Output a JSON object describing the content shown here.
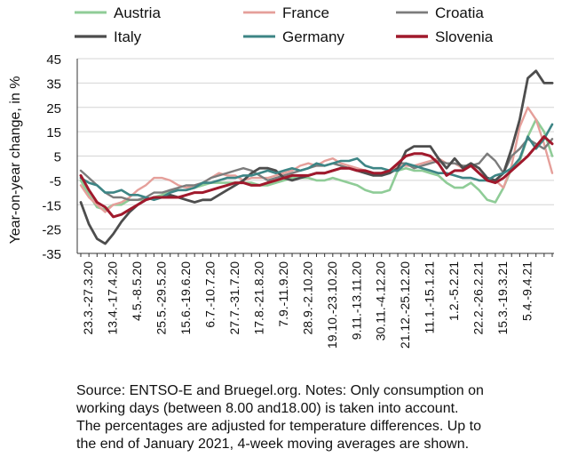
{
  "chart_data": {
    "type": "line",
    "ylabel": "Year-on-year change, in %",
    "xlabel": "",
    "ylim": [
      -35,
      45
    ],
    "yticks": [
      45,
      35,
      25,
      15,
      5,
      -5,
      -15,
      -25,
      -35
    ],
    "grid": true,
    "legend_position": "top",
    "x_tick_labels": [
      "23.3.-27.3.20",
      "13.4.-17.4.20",
      "4.5.-8.5.20",
      "25.5.-29.5.20",
      "15.6.-19.6.20",
      "6.7.-10.7.20",
      "27.7.-31.7.20",
      "17.8.-21.8.20",
      "7.9.-11.9.20",
      "28.9.-2.10.20",
      "19.10.-23.10.20",
      "9.11.-13.11.20",
      "30.11.-4.12.20",
      "21.12.-25.12.20",
      "11.1.-15.1.21",
      "1.2.-5.2.21",
      "22.2.-26.2.21",
      "15.3.-19.3.21",
      "5.4.-9.4.21"
    ],
    "x_tick_every": 3,
    "series": [
      {
        "name": "Austria",
        "color": "#8fcc97",
        "width": 2.6,
        "values": [
          -5,
          -11,
          -16,
          -17,
          -15,
          -15,
          -13,
          -13,
          -13,
          -12,
          -11,
          -9,
          -9,
          -9,
          -8,
          -7,
          -6,
          -6,
          -6,
          -6,
          -6,
          -6,
          -7,
          -7,
          -6,
          -5,
          -4,
          -4,
          -4,
          -5,
          -5,
          -4,
          -5,
          -6,
          -7,
          -9,
          -10,
          -10,
          -9,
          -1,
          0,
          -1,
          -1,
          -2,
          -3,
          -6,
          -8,
          -8,
          -6,
          -9,
          -13,
          -14,
          -8,
          0,
          3,
          13,
          20,
          15,
          5
        ]
      },
      {
        "name": "France",
        "color": "#e59f9a",
        "width": 2.4,
        "values": [
          -7,
          -12,
          -15,
          -18,
          -15,
          -14,
          -12,
          -9,
          -7,
          -4,
          -4,
          -5,
          -7,
          -8,
          -7,
          -6,
          -4,
          -2,
          -3,
          -3,
          -5,
          -4,
          -4,
          -4,
          -3,
          -2,
          -1,
          1,
          2,
          1,
          3,
          4,
          2,
          1,
          0,
          -1,
          -2,
          -2,
          -1,
          1,
          1,
          1,
          2,
          3,
          4,
          2,
          2,
          0,
          2,
          -2,
          -5,
          -5,
          -8,
          1,
          17,
          25,
          20,
          10,
          -2
        ]
      },
      {
        "name": "Croatia",
        "color": "#7c7c7c",
        "width": 2.4,
        "values": [
          -1,
          -4,
          -7,
          -10,
          -12,
          -12,
          -13,
          -13,
          -12,
          -10,
          -10,
          -9,
          -8,
          -7,
          -7,
          -6,
          -4,
          -3,
          -2,
          -1,
          0,
          -1,
          -3,
          -5,
          -4,
          -3,
          -2,
          -1,
          0,
          1,
          1,
          2,
          1,
          0,
          -1,
          -1,
          -2,
          -2,
          -1,
          2,
          2,
          0,
          1,
          2,
          3,
          2,
          2,
          1,
          1,
          2,
          6,
          3,
          -2,
          5,
          8,
          12,
          10,
          8,
          12
        ]
      },
      {
        "name": "Italy",
        "color": "#4d4d4d",
        "width": 2.8,
        "values": [
          -14,
          -23,
          -29,
          -31,
          -27,
          -22,
          -18,
          -15,
          -13,
          -12,
          -12,
          -11,
          -12,
          -13,
          -14,
          -13,
          -13,
          -11,
          -9,
          -7,
          -5,
          -2,
          0,
          0,
          -1,
          -4,
          -5,
          -4,
          -3,
          -2,
          -2,
          -1,
          0,
          0,
          -1,
          -2,
          -3,
          -3,
          -2,
          0,
          7,
          9,
          9,
          9,
          4,
          0,
          4,
          0,
          2,
          0,
          -4,
          -5,
          -2,
          8,
          20,
          37,
          40,
          35,
          35
        ]
      },
      {
        "name": "Germany",
        "color": "#3d8585",
        "width": 2.6,
        "values": [
          -4,
          -6,
          -7,
          -10,
          -10,
          -9,
          -11,
          -11,
          -12,
          -13,
          -12,
          -10,
          -9,
          -9,
          -8,
          -6,
          -6,
          -5,
          -4,
          -4,
          -3,
          -3,
          -2,
          -1,
          -2,
          -1,
          0,
          -1,
          0,
          2,
          1,
          2,
          3,
          3,
          4,
          1,
          0,
          0,
          -1,
          -1,
          2,
          1,
          0,
          -1,
          -2,
          -2,
          -3,
          -4,
          -4,
          -5,
          -5,
          -3,
          -2,
          0,
          4,
          13,
          8,
          12,
          18
        ]
      },
      {
        "name": "Slovenia",
        "color": "#a0192c",
        "width": 3.0,
        "values": [
          -3,
          -9,
          -14,
          -16,
          -20,
          -19,
          -17,
          -15,
          -13,
          -12,
          -12,
          -12,
          -12,
          -11,
          -10,
          -10,
          -9,
          -8,
          -7,
          -6,
          -6,
          -7,
          -7,
          -6,
          -5,
          -4,
          -3,
          -3,
          -3,
          -2,
          -2,
          -1,
          0,
          0,
          -1,
          -1,
          -2,
          -2,
          -1,
          2,
          5,
          6,
          6,
          5,
          2,
          -3,
          -1,
          -1,
          1,
          -2,
          -5,
          -6,
          -4,
          -1,
          2,
          5,
          9,
          13,
          10
        ]
      }
    ]
  },
  "source_note": [
    "Source: ENTSO-E and Bruegel.org. Notes: Only consumption on",
    "working days (between 8.00 and18.00) is taken into account.",
    "The percentages are adjusted for temperature differences. Up to",
    "the end of January 2021, 4-week moving averages are shown."
  ]
}
